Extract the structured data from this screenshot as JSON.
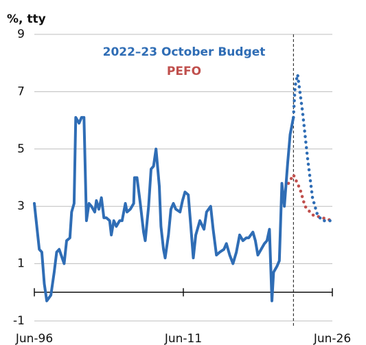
{
  "chart_data": {
    "type": "line",
    "y_label": "%, tty",
    "ylim": [
      -1,
      9
    ],
    "yticks": [
      -1,
      1,
      3,
      5,
      7,
      9
    ],
    "xlim": [
      "1996-06",
      "2026-06"
    ],
    "xticks": [
      {
        "value": "1996-06",
        "label": "Jun-96"
      },
      {
        "value": "2011-06",
        "label": "Jun-11"
      },
      {
        "value": "2026-06",
        "label": "Jun-26"
      }
    ],
    "grid": true,
    "series": [
      {
        "color": "#2f6db5",
        "style": "solid",
        "x": [
          "1996-06",
          "1996-12",
          "1997-03",
          "1997-06",
          "1997-09",
          "1998-02",
          "1998-06",
          "1998-09",
          "1998-12",
          "1999-06",
          "1999-09",
          "2000-01",
          "2000-03",
          "2000-06",
          "2000-08",
          "2000-12",
          "2001-03",
          "2001-06",
          "2001-09",
          "2001-12",
          "2002-03",
          "2002-07",
          "2002-09",
          "2002-12",
          "2003-03",
          "2003-06",
          "2003-09",
          "2004-01",
          "2004-03",
          "2004-06",
          "2004-09",
          "2005-01",
          "2005-04",
          "2005-08",
          "2005-10",
          "2006-02",
          "2006-06",
          "2006-07",
          "2006-10",
          "2007-02",
          "2007-06",
          "2007-08",
          "2007-12",
          "2008-03",
          "2008-06",
          "2008-09",
          "2009-01",
          "2009-03",
          "2009-06",
          "2009-08",
          "2009-12",
          "2010-03",
          "2010-06",
          "2010-09",
          "2011-02",
          "2011-05",
          "2011-08",
          "2011-12",
          "2012-03",
          "2012-06",
          "2012-09",
          "2013-02",
          "2013-07",
          "2013-10",
          "2014-03",
          "2014-06",
          "2014-10",
          "2015-02",
          "2015-07",
          "2015-10",
          "2016-02",
          "2016-06",
          "2016-10",
          "2017-02",
          "2017-06",
          "2017-10",
          "2018-01",
          "2018-06",
          "2018-09",
          "2018-12",
          "2019-04",
          "2019-08",
          "2019-11",
          "2020-02",
          "2020-05",
          "2020-07",
          "2020-11",
          "2021-02",
          "2021-05",
          "2021-08",
          "2021-12",
          "2022-03",
          "2022-07"
        ],
        "values": [
          3.1,
          1.5,
          1.4,
          0.3,
          -0.3,
          -0.1,
          0.7,
          1.4,
          1.5,
          1.0,
          1.8,
          1.9,
          2.8,
          3.1,
          6.1,
          5.9,
          6.1,
          6.1,
          2.5,
          3.1,
          3.0,
          2.8,
          3.2,
          2.9,
          3.3,
          2.6,
          2.6,
          2.5,
          2.0,
          2.5,
          2.3,
          2.5,
          2.5,
          3.1,
          2.8,
          2.9,
          3.1,
          4.0,
          4.0,
          3.1,
          2.1,
          1.8,
          3.0,
          4.3,
          4.4,
          5.0,
          3.7,
          2.3,
          1.5,
          1.2,
          2.0,
          2.9,
          3.1,
          2.9,
          2.8,
          3.2,
          3.5,
          3.4,
          2.3,
          1.2,
          2.0,
          2.5,
          2.2,
          2.8,
          3.0,
          2.2,
          1.3,
          1.4,
          1.5,
          1.7,
          1.3,
          1.0,
          1.4,
          2.0,
          1.8,
          1.9,
          1.9,
          2.1,
          1.8,
          1.3,
          1.5,
          1.7,
          1.8,
          2.2,
          -0.3,
          0.7,
          0.9,
          1.1,
          3.8,
          3.0,
          4.5,
          5.5,
          6.1
        ]
      },
      {
        "name": "2022–23 October Budget",
        "color": "#2f6db5",
        "style": "dotted",
        "x": [
          "2022-07",
          "2022-09",
          "2022-12",
          "2023-06",
          "2023-12",
          "2024-06",
          "2024-12",
          "2025-06",
          "2026-06"
        ],
        "values": [
          6.1,
          7.2,
          7.6,
          6.3,
          4.7,
          3.3,
          2.7,
          2.5,
          2.5
        ]
      },
      {
        "name": "PEFO",
        "color": "#c0504d",
        "style": "dotted",
        "x": [
          "2022-01",
          "2022-07",
          "2023-03",
          "2023-09",
          "2024-06",
          "2025-06",
          "2026-06"
        ],
        "values": [
          3.8,
          4.1,
          3.6,
          3.0,
          2.7,
          2.6,
          2.5
        ]
      }
    ]
  }
}
